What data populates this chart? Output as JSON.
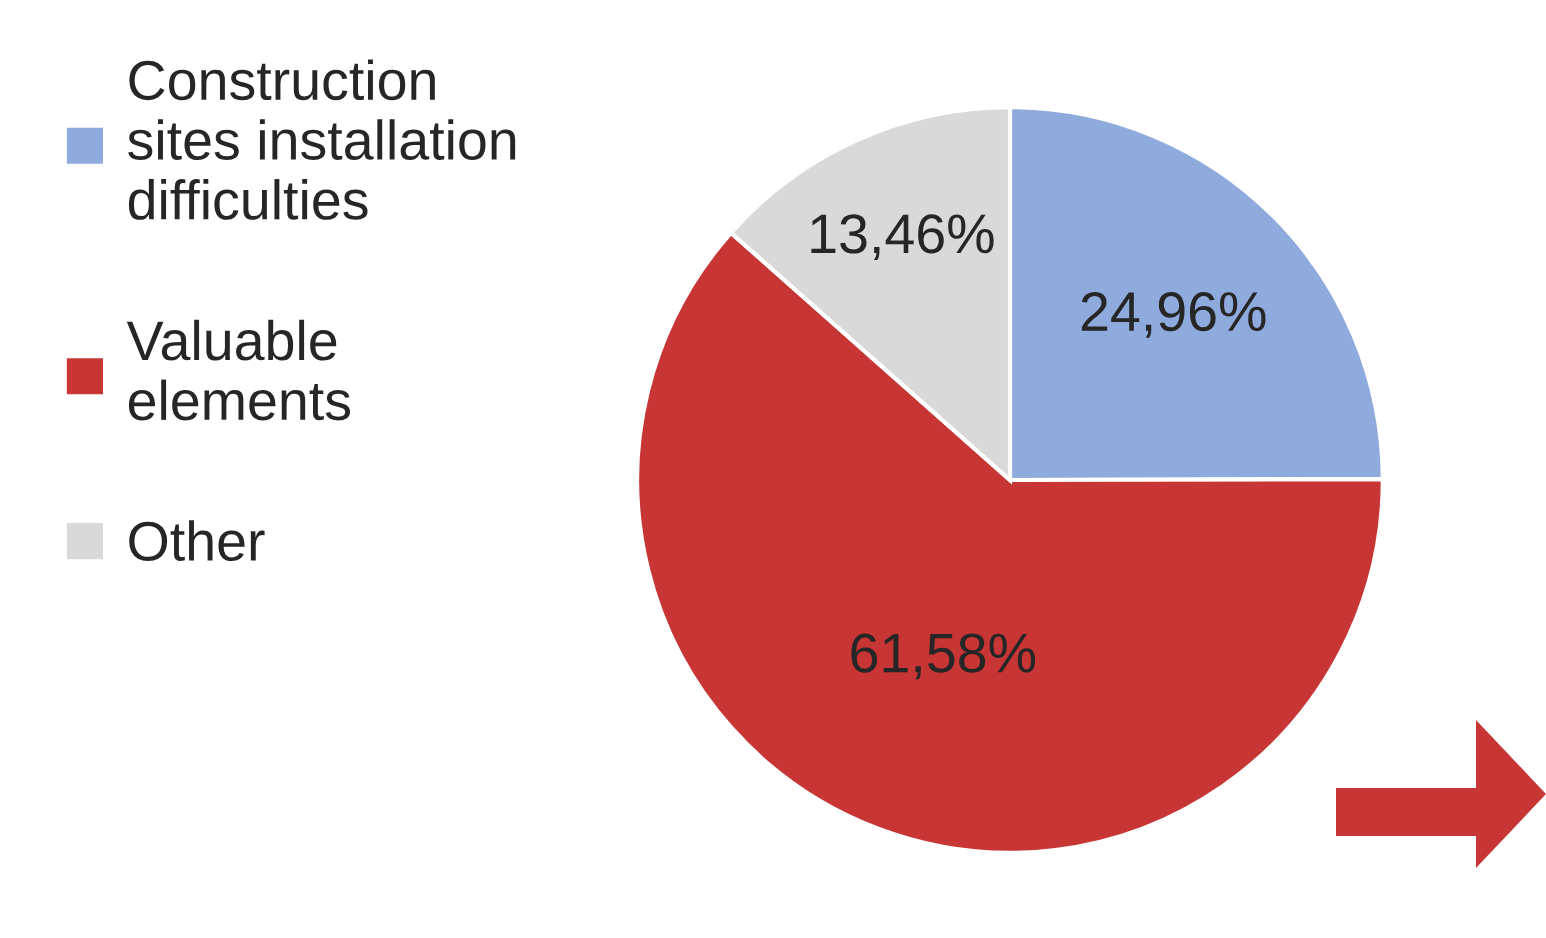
{
  "chart_data": {
    "type": "pie",
    "categories": [
      "Construction\nsites installation\ndifficulties",
      "Valuable\nelements",
      "Other"
    ],
    "values": [
      24.96,
      61.58,
      13.46
    ],
    "value_labels": [
      "24,96%",
      "61,58%",
      "13,46%"
    ],
    "colors": [
      "#8faadc",
      "#c83535",
      "#d9d9d9"
    ],
    "legend": "left"
  }
}
